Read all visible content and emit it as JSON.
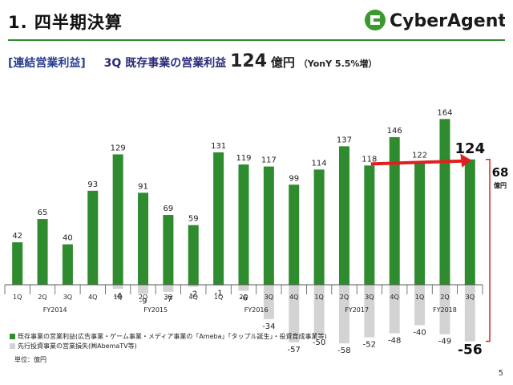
{
  "header": {
    "title": "1. 四半期決算",
    "logo_text": "CyberAgent."
  },
  "subtitle": {
    "section": "[連結営業利益]",
    "lead": "3Q 既存事業の営業利益",
    "value": "124",
    "unit": "億円",
    "yoy": "（YonY 5.5%増）"
  },
  "colors": {
    "green": "#2e8b2e",
    "gray": "#d3d3d3",
    "red": "#e02020",
    "logo_green": "#3a9a2e"
  },
  "chart_data": {
    "type": "bar",
    "categories": [
      "1Q",
      "2Q",
      "3Q",
      "4Q",
      "1Q",
      "2Q",
      "3Q",
      "4Q",
      "1Q",
      "2Q",
      "3Q",
      "4Q",
      "1Q",
      "2Q",
      "3Q",
      "4Q",
      "1Q",
      "2Q",
      "3Q"
    ],
    "fiscal_years": [
      {
        "label": "FY2014",
        "start": 0,
        "count": 4
      },
      {
        "label": "FY2015",
        "start": 4,
        "count": 4
      },
      {
        "label": "FY2016",
        "start": 8,
        "count": 4
      },
      {
        "label": "FY2017",
        "start": 12,
        "count": 4
      },
      {
        "label": "FY2018",
        "start": 16,
        "count": 3
      }
    ],
    "series": [
      {
        "name": "既存事業の営業利益(広告事業・ゲーム事業・メディア事業の「Ameba」「タップル誕生」・投資育成事業等)",
        "values": [
          42,
          65,
          40,
          93,
          129,
          91,
          69,
          59,
          131,
          119,
          117,
          99,
          114,
          137,
          118,
          146,
          122,
          164,
          124
        ]
      },
      {
        "name": "先行投資事業の営業損失(㈱AbemaTV等)",
        "values": [
          0,
          0,
          0,
          0,
          -4,
          -9,
          -7,
          -2,
          -1,
          -6,
          -34,
          -57,
          -50,
          -58,
          -52,
          -48,
          -40,
          -49,
          -56
        ]
      }
    ],
    "annotations": {
      "highlight_value": "124",
      "highlight_negative": "-56",
      "total_value": "68",
      "total_unit": "億円",
      "arrow_from_index": 14,
      "arrow_to_index": 18
    },
    "ylim": [
      -60,
      170
    ]
  },
  "footer": {
    "unit_note": "単位：億円",
    "page_number": "5"
  }
}
